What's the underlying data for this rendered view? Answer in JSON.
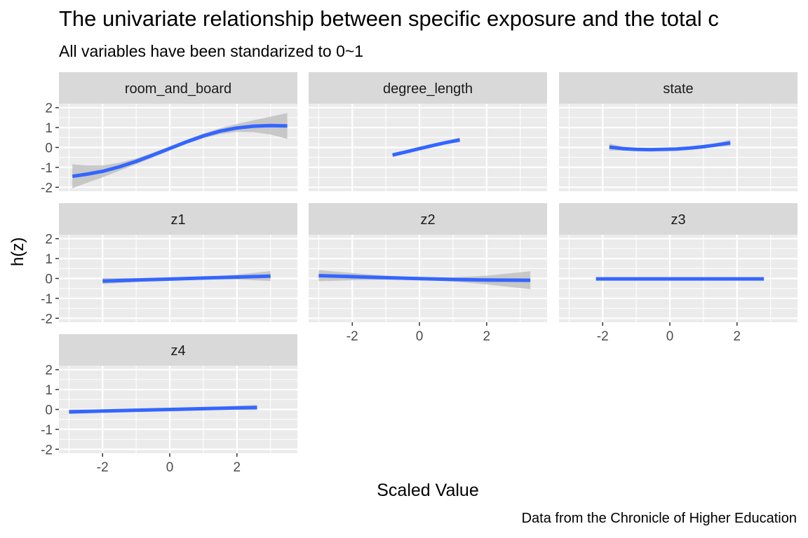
{
  "chart_data": {
    "type": "line",
    "title": "The univariate relationship between specific exposure and the total c",
    "subtitle": "All variables have been standarized to 0~1",
    "xlabel": "Scaled Value",
    "ylabel": "h(z)",
    "caption": "Data from the Chronicle of Higher Education",
    "xlim": [
      -3.3,
      3.8
    ],
    "ylim": [
      -2.2,
      2.2
    ],
    "x_ticks": [
      -2,
      0,
      2
    ],
    "y_ticks": [
      -2,
      -1,
      0,
      1,
      2
    ],
    "grid": true,
    "colors": {
      "line": "#3366FF",
      "ribbon": "#BEBEBE",
      "panel_bg": "#EBEBEB",
      "strip_bg": "#D9D9D9",
      "grid": "#FFFFFF",
      "tick_text": "#4D4D4D"
    },
    "panels": [
      {
        "name": "room_and_board",
        "x": [
          -2.9,
          -2.5,
          -2.0,
          -1.5,
          -1.0,
          -0.5,
          0.0,
          0.5,
          1.0,
          1.5,
          2.0,
          2.5,
          3.0,
          3.5
        ],
        "y": [
          -1.45,
          -1.35,
          -1.2,
          -0.97,
          -0.7,
          -0.38,
          -0.05,
          0.28,
          0.58,
          0.82,
          0.98,
          1.07,
          1.1,
          1.08
        ],
        "se": [
          0.6,
          0.45,
          0.3,
          0.2,
          0.15,
          0.12,
          0.1,
          0.1,
          0.12,
          0.15,
          0.2,
          0.3,
          0.45,
          0.65
        ]
      },
      {
        "name": "degree_length",
        "x": [
          -0.8,
          -0.4,
          0.0,
          0.4,
          0.8,
          1.2
        ],
        "y": [
          -0.38,
          -0.22,
          -0.06,
          0.1,
          0.25,
          0.38
        ],
        "se": [
          0.1,
          0.07,
          0.05,
          0.05,
          0.07,
          0.12
        ]
      },
      {
        "name": "state",
        "x": [
          -1.8,
          -1.4,
          -1.0,
          -0.6,
          -0.2,
          0.2,
          0.6,
          1.0,
          1.4,
          1.8
        ],
        "y": [
          0.02,
          -0.06,
          -0.1,
          -0.11,
          -0.1,
          -0.08,
          -0.03,
          0.04,
          0.13,
          0.23
        ],
        "se": [
          0.18,
          0.1,
          0.07,
          0.05,
          0.04,
          0.04,
          0.05,
          0.07,
          0.1,
          0.16
        ]
      },
      {
        "name": "z1",
        "x": [
          -2.0,
          -1.0,
          0.0,
          1.0,
          2.0,
          3.0
        ],
        "y": [
          -0.13,
          -0.08,
          -0.03,
          0.02,
          0.07,
          0.12
        ],
        "se": [
          0.15,
          0.1,
          0.06,
          0.06,
          0.12,
          0.25
        ]
      },
      {
        "name": "z2",
        "x": [
          -3.0,
          -2.0,
          -1.0,
          0.0,
          1.0,
          2.0,
          3.3
        ],
        "y": [
          0.14,
          0.09,
          0.04,
          -0.01,
          -0.05,
          -0.08,
          -0.09
        ],
        "se": [
          0.28,
          0.18,
          0.1,
          0.06,
          0.1,
          0.22,
          0.45
        ]
      },
      {
        "name": "z3",
        "x": [
          -2.2,
          2.8
        ],
        "y": [
          -0.02,
          -0.02
        ],
        "se": [
          0.03,
          0.03
        ]
      },
      {
        "name": "z4",
        "x": [
          -3.0,
          -2.0,
          -1.0,
          0.0,
          1.0,
          2.0,
          2.6
        ],
        "y": [
          -0.12,
          -0.08,
          -0.04,
          0.0,
          0.04,
          0.08,
          0.1
        ],
        "se": [
          0.12,
          0.08,
          0.05,
          0.04,
          0.06,
          0.1,
          0.13
        ]
      }
    ]
  }
}
